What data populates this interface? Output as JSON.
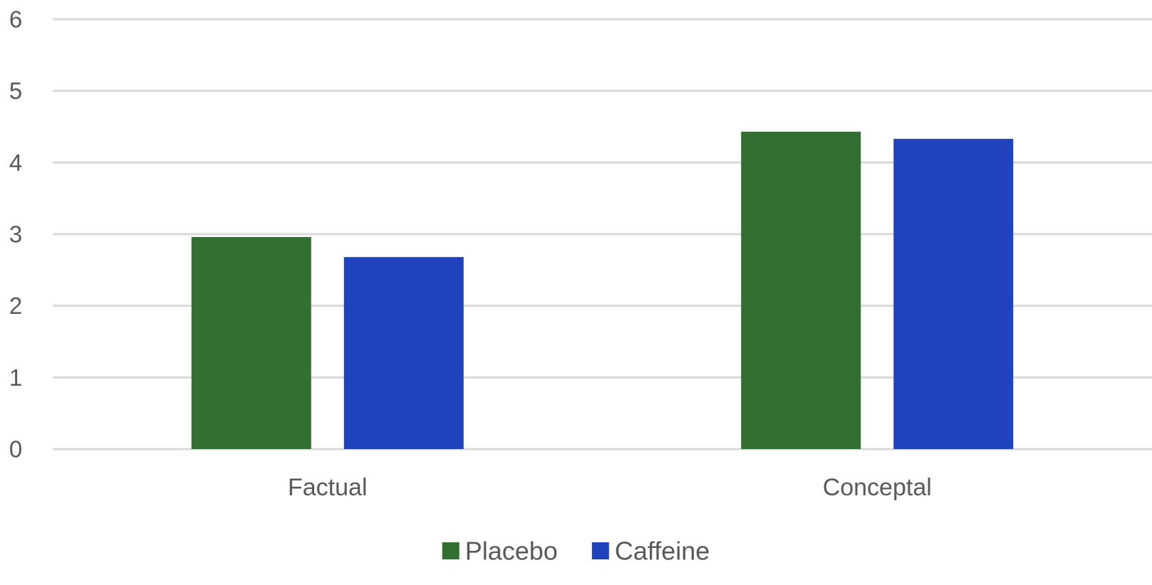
{
  "chart_data": {
    "type": "bar",
    "title": "",
    "xlabel": "",
    "ylabel": "",
    "categories": [
      "Factual",
      "Conceptal"
    ],
    "series": [
      {
        "name": "Placebo",
        "color": "#326f31",
        "values": [
          2.96,
          4.43
        ]
      },
      {
        "name": "Caffeine",
        "color": "#2142bd",
        "values": [
          2.68,
          4.33
        ]
      }
    ],
    "ylim": [
      0,
      6
    ],
    "yticks": [
      0,
      1,
      2,
      3,
      4,
      5,
      6
    ],
    "grid": true,
    "legend_position": "bottom"
  }
}
